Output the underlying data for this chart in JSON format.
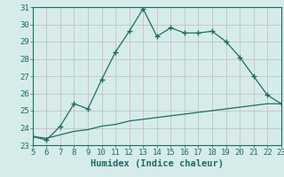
{
  "xlabel": "Humidex (Indice chaleur)",
  "xlim": [
    5,
    23
  ],
  "ylim": [
    23,
    31
  ],
  "yticks": [
    23,
    24,
    25,
    26,
    27,
    28,
    29,
    30,
    31
  ],
  "xticks": [
    5,
    6,
    7,
    8,
    9,
    10,
    11,
    12,
    13,
    14,
    15,
    16,
    17,
    18,
    19,
    20,
    21,
    22,
    23
  ],
  "background_color": "#d5ecea",
  "line_color": "#1e6b64",
  "grid_color": "#c8b8b8",
  "line1_x": [
    5,
    6,
    7,
    8,
    9,
    10,
    11,
    12,
    13,
    14,
    15,
    16,
    17,
    18,
    19,
    20,
    21,
    22,
    23
  ],
  "line1_y": [
    23.5,
    23.3,
    24.1,
    25.4,
    25.1,
    26.8,
    28.4,
    29.6,
    30.9,
    29.3,
    29.8,
    29.5,
    29.5,
    29.6,
    29.0,
    28.1,
    27.0,
    25.9,
    25.4
  ],
  "line2_x": [
    5,
    6,
    7,
    8,
    9,
    10,
    11,
    12,
    13,
    14,
    15,
    16,
    17,
    18,
    19,
    20,
    21,
    22,
    23
  ],
  "line2_y": [
    23.5,
    23.4,
    23.6,
    23.8,
    23.9,
    24.1,
    24.2,
    24.4,
    24.5,
    24.6,
    24.7,
    24.8,
    24.9,
    25.0,
    25.1,
    25.2,
    25.3,
    25.4,
    25.4
  ],
  "marker": "+",
  "markersize": 4,
  "linewidth": 0.9,
  "xlabel_fontsize": 7.5,
  "tick_fontsize": 6.5
}
